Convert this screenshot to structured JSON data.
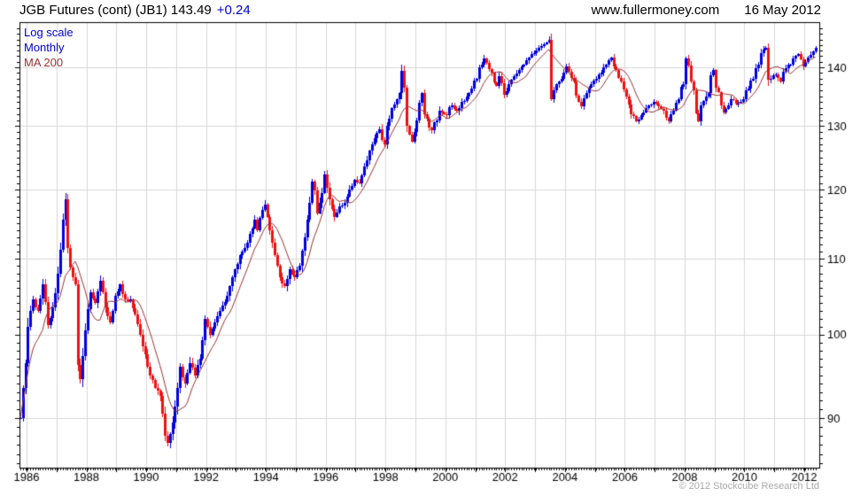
{
  "header": {
    "title": "JGB Futures (cont) (JB1) 143.49",
    "change": "+0.24",
    "site": "www.fullermoney.com",
    "date": "16 May 2012"
  },
  "legend": {
    "scale_label": "Log scale",
    "period_label": "Monthly",
    "ma_label": "MA 200"
  },
  "footer": {
    "copyright": "© 2012 Stockcube Research Ltd"
  },
  "chart_data": {
    "type": "candlestick",
    "title": "JGB Futures (cont) (JB1)",
    "last_price": 143.49,
    "change": 0.24,
    "period": "Monthly",
    "overlay": "MA 200",
    "x_axis": {
      "start": 1985.79,
      "end": 2012.55,
      "label_years": [
        1986,
        1988,
        1990,
        1992,
        1994,
        1996,
        1998,
        2000,
        2002,
        2004,
        2006,
        2008,
        2010,
        2012
      ],
      "gridline_years_step": 1
    },
    "y_axis": {
      "scale": "log",
      "side": "right",
      "ticks": [
        90,
        100,
        110,
        120,
        130,
        140
      ],
      "minor_tick_step": 1,
      "approx_range": [
        85.5,
        146.5
      ]
    },
    "ma_window_months": 10,
    "waypoints": [
      [
        1985.79,
        90.0
      ],
      [
        1985.87,
        93.5
      ],
      [
        1985.96,
        96.5
      ],
      [
        1986.04,
        101.0
      ],
      [
        1986.2,
        104.5
      ],
      [
        1986.37,
        103.0
      ],
      [
        1986.55,
        106.5
      ],
      [
        1986.7,
        101.2
      ],
      [
        1986.9,
        103.5
      ],
      [
        1987.05,
        108.0
      ],
      [
        1987.21,
        115.5
      ],
      [
        1987.29,
        118.5
      ],
      [
        1987.37,
        111.5
      ],
      [
        1987.5,
        107.5
      ],
      [
        1987.62,
        106.5
      ],
      [
        1987.71,
        96.2
      ],
      [
        1987.79,
        94.5
      ],
      [
        1987.96,
        100.5
      ],
      [
        1988.12,
        105.5
      ],
      [
        1988.29,
        104.0
      ],
      [
        1988.46,
        107.0
      ],
      [
        1988.62,
        103.5
      ],
      [
        1988.79,
        101.5
      ],
      [
        1988.96,
        105.0
      ],
      [
        1989.12,
        106.5
      ],
      [
        1989.29,
        104.5
      ],
      [
        1989.46,
        104.5
      ],
      [
        1989.62,
        102.5
      ],
      [
        1989.79,
        100.0
      ],
      [
        1989.96,
        97.5
      ],
      [
        1990.12,
        95.0
      ],
      [
        1990.29,
        93.5
      ],
      [
        1990.46,
        92.5
      ],
      [
        1990.54,
        90.5
      ],
      [
        1990.62,
        88.0
      ],
      [
        1990.71,
        87.2
      ],
      [
        1990.87,
        89.5
      ],
      [
        1991.04,
        93.5
      ],
      [
        1991.12,
        96.0
      ],
      [
        1991.29,
        94.0
      ],
      [
        1991.46,
        96.5
      ],
      [
        1991.62,
        95.0
      ],
      [
        1991.79,
        97.0
      ],
      [
        1991.96,
        102.0
      ],
      [
        1992.12,
        100.0
      ],
      [
        1992.29,
        101.5
      ],
      [
        1992.46,
        103.0
      ],
      [
        1992.71,
        105.0
      ],
      [
        1992.96,
        108.5
      ],
      [
        1993.12,
        110.5
      ],
      [
        1993.29,
        111.5
      ],
      [
        1993.46,
        113.5
      ],
      [
        1993.62,
        115.5
      ],
      [
        1993.71,
        114.0
      ],
      [
        1993.87,
        117.0
      ],
      [
        1993.96,
        117.8
      ],
      [
        1994.12,
        114.0
      ],
      [
        1994.29,
        110.5
      ],
      [
        1994.46,
        107.5
      ],
      [
        1994.62,
        106.3
      ],
      [
        1994.79,
        108.5
      ],
      [
        1994.96,
        107.5
      ],
      [
        1995.12,
        109.0
      ],
      [
        1995.29,
        113.0
      ],
      [
        1995.46,
        118.0
      ],
      [
        1995.58,
        121.3
      ],
      [
        1995.71,
        116.5
      ],
      [
        1995.87,
        119.5
      ],
      [
        1995.96,
        122.3
      ],
      [
        1996.12,
        118.5
      ],
      [
        1996.29,
        116.0
      ],
      [
        1996.46,
        117.5
      ],
      [
        1996.62,
        118.0
      ],
      [
        1996.79,
        120.0
      ],
      [
        1996.96,
        121.5
      ],
      [
        1997.12,
        121.0
      ],
      [
        1997.29,
        123.5
      ],
      [
        1997.46,
        126.0
      ],
      [
        1997.62,
        128.0
      ],
      [
        1997.79,
        129.5
      ],
      [
        1997.92,
        127.0
      ],
      [
        1998.04,
        130.0
      ],
      [
        1998.21,
        133.0
      ],
      [
        1998.37,
        134.5
      ],
      [
        1998.46,
        135.5
      ],
      [
        1998.58,
        139.4
      ],
      [
        1998.71,
        130.0
      ],
      [
        1998.87,
        127.5
      ],
      [
        1999.04,
        131.0
      ],
      [
        1999.17,
        135.5
      ],
      [
        1999.33,
        132.0
      ],
      [
        1999.5,
        129.3
      ],
      [
        1999.67,
        131.0
      ],
      [
        1999.83,
        132.5
      ],
      [
        2000.0,
        131.8
      ],
      [
        2000.17,
        133.5
      ],
      [
        2000.37,
        132.5
      ],
      [
        2000.58,
        134.0
      ],
      [
        2000.79,
        135.5
      ],
      [
        2001.0,
        138.0
      ],
      [
        2001.17,
        140.5
      ],
      [
        2001.33,
        141.5
      ],
      [
        2001.5,
        139.0
      ],
      [
        2001.67,
        136.8
      ],
      [
        2001.83,
        138.5
      ],
      [
        2001.96,
        135.2
      ],
      [
        2002.12,
        137.0
      ],
      [
        2002.29,
        138.5
      ],
      [
        2002.46,
        139.5
      ],
      [
        2002.62,
        140.5
      ],
      [
        2002.79,
        141.8
      ],
      [
        2002.96,
        142.5
      ],
      [
        2003.12,
        143.5
      ],
      [
        2003.29,
        144.2
      ],
      [
        2003.42,
        145.0
      ],
      [
        2003.54,
        134.5
      ],
      [
        2003.67,
        137.0
      ],
      [
        2003.83,
        137.5
      ],
      [
        2003.96,
        139.0
      ],
      [
        2004.08,
        140.2
      ],
      [
        2004.25,
        137.5
      ],
      [
        2004.42,
        134.0
      ],
      [
        2004.54,
        133.3
      ],
      [
        2004.71,
        135.5
      ],
      [
        2004.87,
        137.0
      ],
      [
        2005.04,
        138.0
      ],
      [
        2005.21,
        139.0
      ],
      [
        2005.37,
        140.5
      ],
      [
        2005.5,
        141.7
      ],
      [
        2005.67,
        139.5
      ],
      [
        2005.87,
        137.5
      ],
      [
        2006.04,
        135.0
      ],
      [
        2006.21,
        132.0
      ],
      [
        2006.37,
        130.8
      ],
      [
        2006.54,
        131.8
      ],
      [
        2006.71,
        133.0
      ],
      [
        2006.92,
        134.0
      ],
      [
        2007.08,
        133.8
      ],
      [
        2007.25,
        132.5
      ],
      [
        2007.42,
        130.8
      ],
      [
        2007.58,
        132.0
      ],
      [
        2007.75,
        134.5
      ],
      [
        2007.92,
        137.0
      ],
      [
        2008.08,
        141.5
      ],
      [
        2008.25,
        136.0
      ],
      [
        2008.42,
        130.8
      ],
      [
        2008.58,
        133.5
      ],
      [
        2008.75,
        135.5
      ],
      [
        2008.92,
        139.5
      ],
      [
        2009.08,
        136.5
      ],
      [
        2009.25,
        132.3
      ],
      [
        2009.42,
        133.5
      ],
      [
        2009.58,
        134.5
      ],
      [
        2009.75,
        133.8
      ],
      [
        2009.92,
        134.5
      ],
      [
        2010.08,
        136.0
      ],
      [
        2010.25,
        138.0
      ],
      [
        2010.42,
        140.5
      ],
      [
        2010.58,
        142.5
      ],
      [
        2010.67,
        143.5
      ],
      [
        2010.83,
        137.8
      ],
      [
        2011.0,
        138.8
      ],
      [
        2011.17,
        137.5
      ],
      [
        2011.33,
        139.2
      ],
      [
        2011.5,
        140.5
      ],
      [
        2011.67,
        142.0
      ],
      [
        2011.83,
        142.3
      ],
      [
        2011.96,
        140.2
      ],
      [
        2012.12,
        141.8
      ],
      [
        2012.29,
        142.8
      ],
      [
        2012.37,
        143.49
      ]
    ],
    "colors": {
      "up_candle": "#0000dd",
      "down_candle": "#ee1111",
      "ma_line": "#993333",
      "grid": "#d8d8d8",
      "axis": "#000000",
      "accent_blue": "#0000cc",
      "copyright_gray": "#a9a9a9",
      "background": "#ffffff"
    }
  }
}
